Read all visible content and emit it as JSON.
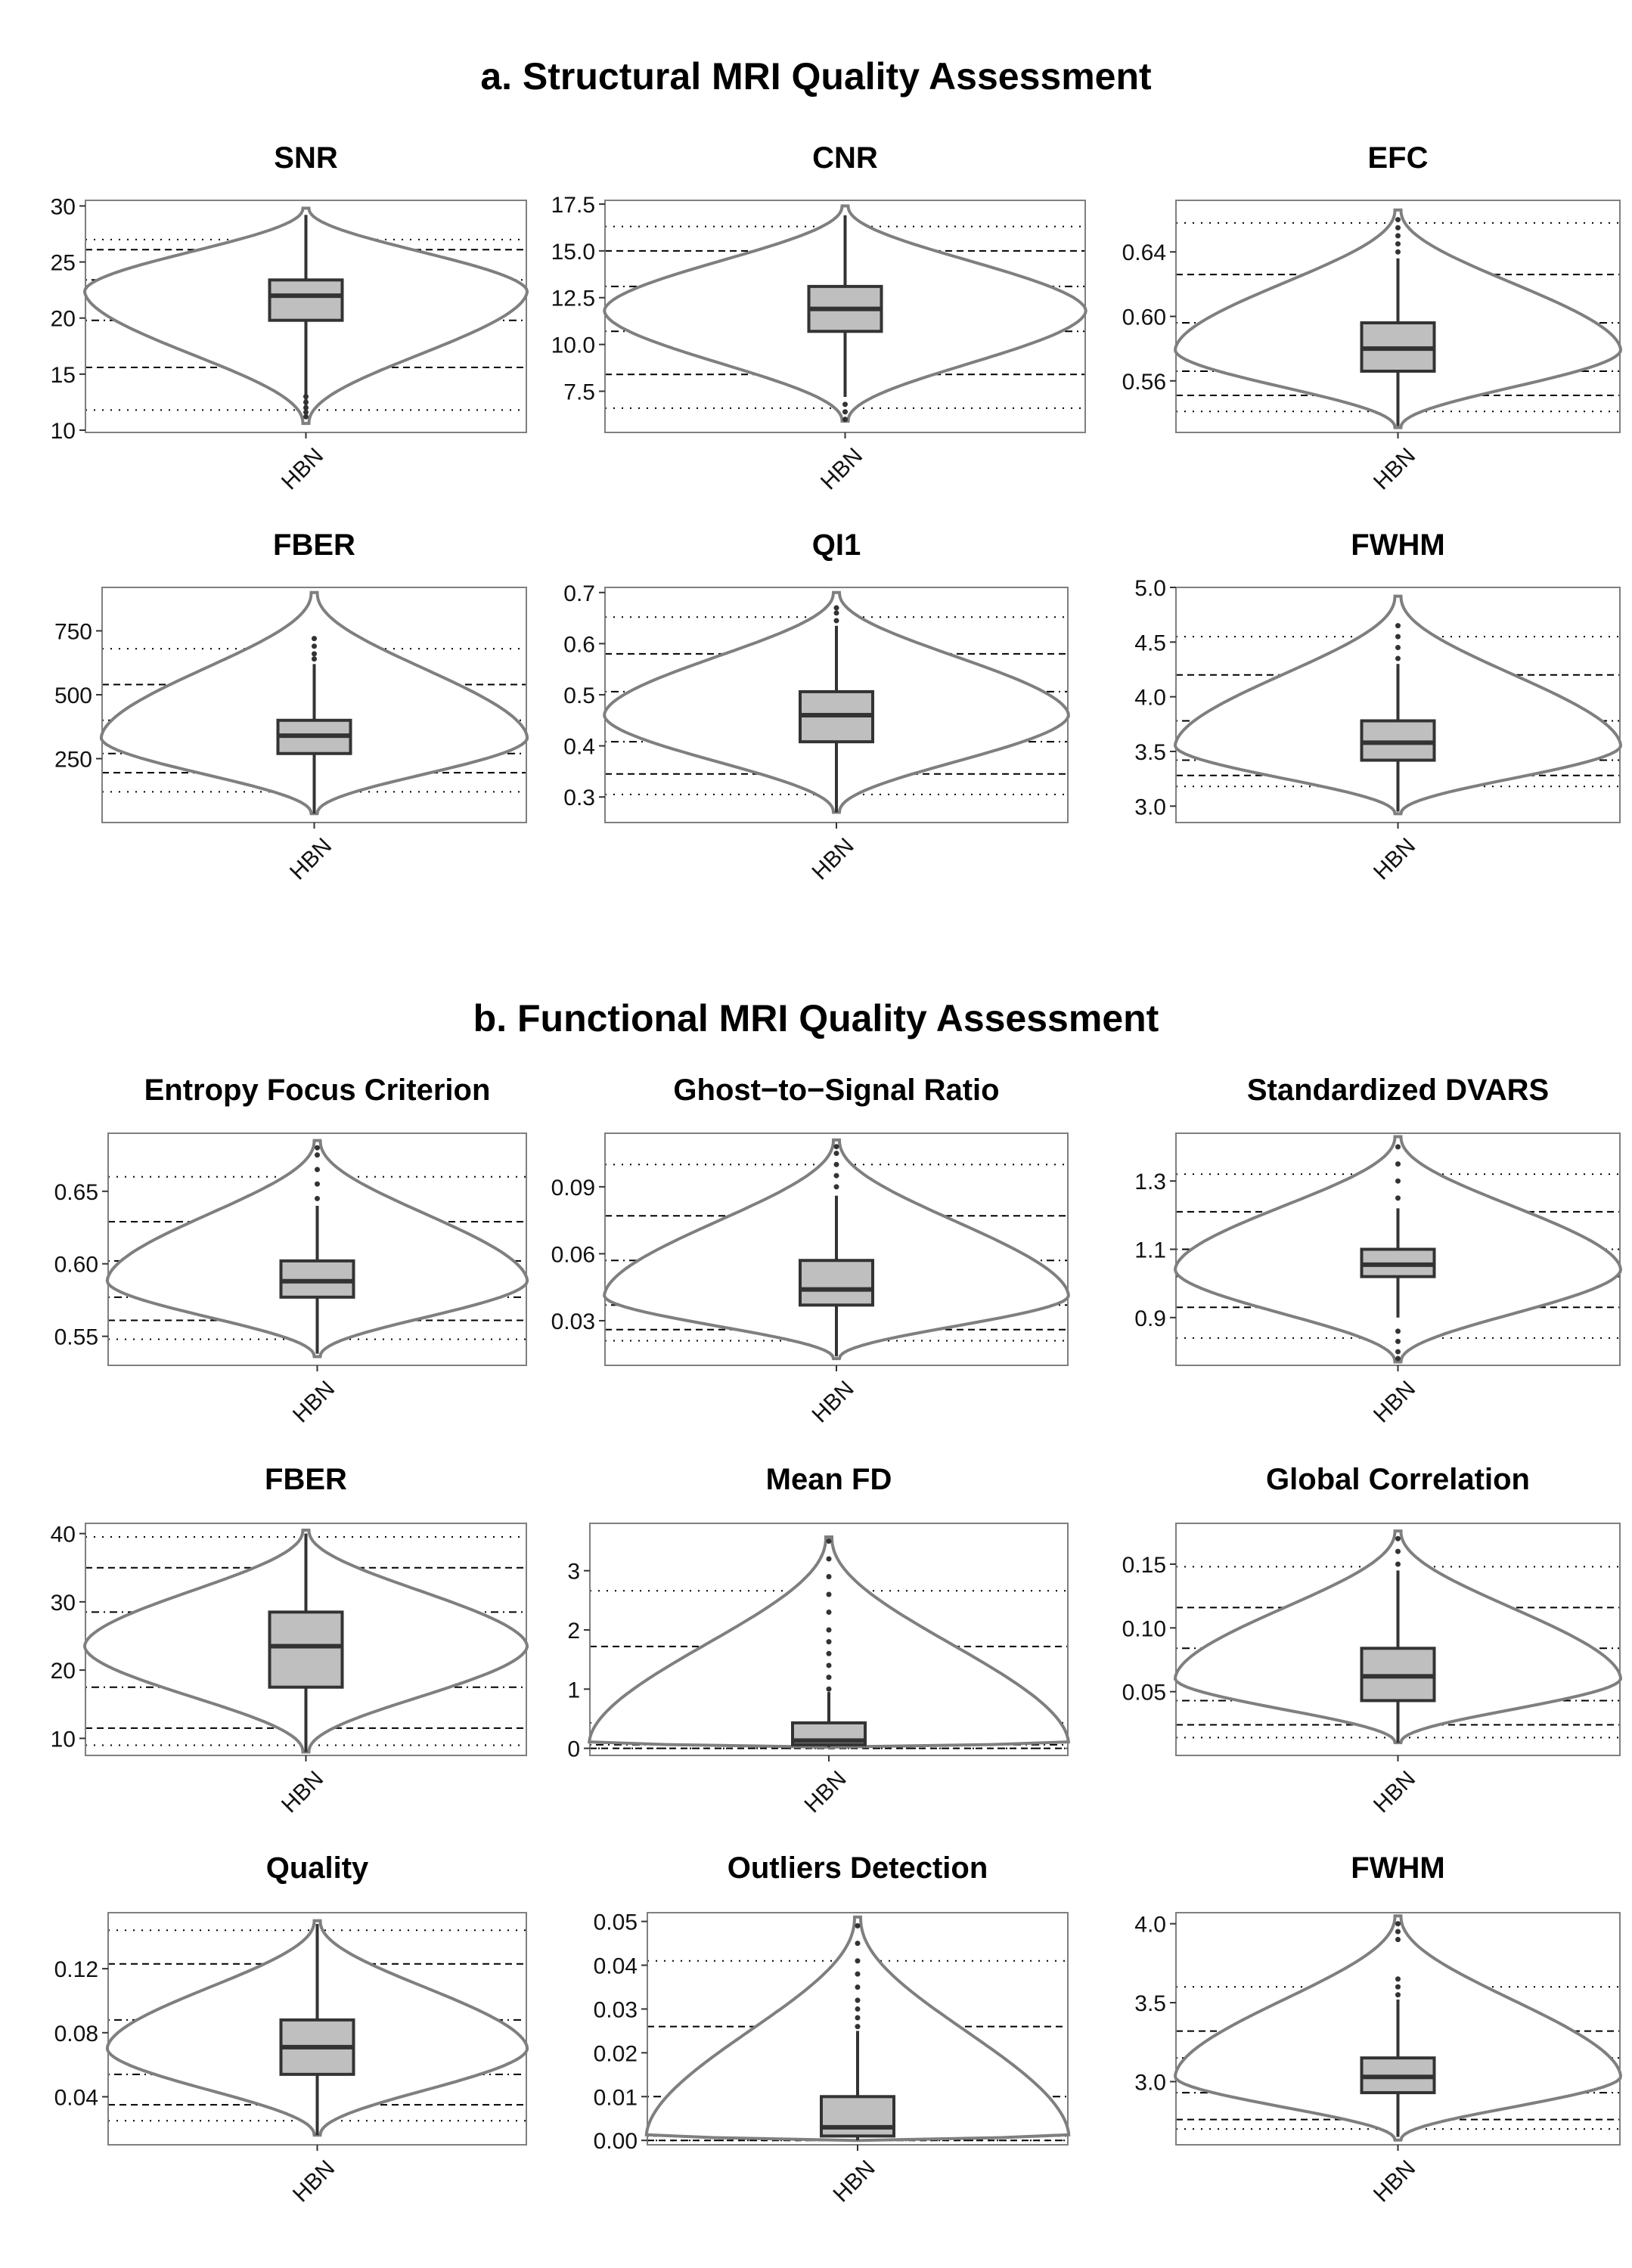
{
  "section_a_title": "a. Structural MRI Quality Assessment",
  "section_b_title": "b. Functional MRI Quality Assessment",
  "colors": {
    "box_fill": "#bfbfbf",
    "violin_stroke": "#7f7f7f",
    "frame": "#7f7f7f",
    "reference_line": "#000000",
    "median_line": "#333333"
  },
  "chart_data": [
    {
      "type": "violin",
      "section": "a",
      "title": "SNR",
      "categories": [
        "HBN"
      ],
      "yticks": [
        "10",
        "15",
        "20",
        "25",
        "30"
      ],
      "ylim": [
        9.8,
        30.5
      ],
      "box": {
        "min": 11.2,
        "q1": 19.8,
        "median": 22.0,
        "q3": 23.4,
        "max": 29.2
      },
      "violin_range": [
        10.6,
        29.8
      ],
      "violin_peak": 22.4,
      "outliers": [
        11.2,
        11.6,
        12.0,
        12.5,
        13.0
      ],
      "reference_lines": {
        "solid": 22.0,
        "dotdash": [
          19.8,
          23.4
        ],
        "dashed": [
          15.6,
          26.1
        ],
        "dotted": [
          11.8,
          27.0
        ]
      }
    },
    {
      "type": "violin",
      "section": "a",
      "title": "CNR",
      "categories": [
        "HBN"
      ],
      "yticks": [
        "7.5",
        "10.0",
        "12.5",
        "15.0",
        "17.5"
      ],
      "ylim": [
        5.3,
        17.7
      ],
      "box": {
        "min": 7.2,
        "q1": 10.7,
        "median": 11.9,
        "q3": 13.1,
        "max": 16.9
      },
      "violin_range": [
        5.9,
        17.4
      ],
      "violin_peak": 11.8,
      "outliers": [
        6.0,
        6.4,
        6.8
      ],
      "reference_lines": {
        "solid": 11.9,
        "dotdash": [
          10.7,
          13.1
        ],
        "dashed": [
          8.4,
          15.0
        ],
        "dotted": [
          6.6,
          16.3
        ]
      }
    },
    {
      "type": "violin",
      "section": "a",
      "title": "EFC",
      "categories": [
        "HBN"
      ],
      "yticks": [
        "0.56",
        "0.60",
        "0.64"
      ],
      "ylim": [
        0.528,
        0.672
      ],
      "box": {
        "min": 0.532,
        "q1": 0.566,
        "median": 0.58,
        "q3": 0.596,
        "max": 0.636
      },
      "violin_range": [
        0.531,
        0.666
      ],
      "violin_peak": 0.579,
      "outliers": [
        0.64,
        0.645,
        0.65,
        0.655,
        0.66
      ],
      "reference_lines": {
        "solid": 0.58,
        "dotdash": [
          0.566,
          0.596
        ],
        "dashed": [
          0.551,
          0.626
        ],
        "dotted": [
          0.541,
          0.658
        ]
      }
    },
    {
      "type": "violin",
      "section": "a",
      "title": "FBER",
      "categories": [
        "HBN"
      ],
      "yticks": [
        "250",
        "500",
        "750"
      ],
      "ylim": [
        0,
        920
      ],
      "box": {
        "min": 35,
        "q1": 270,
        "median": 340,
        "q3": 400,
        "max": 620
      },
      "violin_range": [
        35,
        900
      ],
      "violin_peak": 330,
      "outliers": [
        640,
        660,
        690,
        720
      ],
      "reference_lines": {
        "solid": 340,
        "dotdash": [
          270,
          400
        ],
        "dashed": [
          195,
          540
        ],
        "dotted": [
          120,
          680
        ]
      }
    },
    {
      "type": "violin",
      "section": "a",
      "title": "QI1",
      "categories": [
        "HBN"
      ],
      "yticks": [
        "0.3",
        "0.4",
        "0.5",
        "0.6",
        "0.7"
      ],
      "ylim": [
        0.25,
        0.71
      ],
      "box": {
        "min": 0.27,
        "q1": 0.408,
        "median": 0.46,
        "q3": 0.506,
        "max": 0.635
      },
      "violin_range": [
        0.27,
        0.7
      ],
      "violin_peak": 0.46,
      "outliers": [
        0.645,
        0.66,
        0.67
      ],
      "reference_lines": {
        "solid": 0.46,
        "dotdash": [
          0.408,
          0.506
        ],
        "dashed": [
          0.345,
          0.58
        ],
        "dotted": [
          0.305,
          0.652
        ]
      }
    },
    {
      "type": "violin",
      "section": "a",
      "title": "FWHM",
      "categories": [
        "HBN"
      ],
      "yticks": [
        "3.0",
        "3.5",
        "4.0",
        "4.5",
        "5.0"
      ],
      "ylim": [
        2.85,
        5.0
      ],
      "box": {
        "min": 2.95,
        "q1": 3.42,
        "median": 3.58,
        "q3": 3.78,
        "max": 4.3
      },
      "violin_range": [
        2.93,
        4.92
      ],
      "violin_peak": 3.55,
      "outliers": [
        4.35,
        4.45,
        4.55,
        4.65
      ],
      "reference_lines": {
        "solid": 3.58,
        "dotdash": [
          3.42,
          3.78
        ],
        "dashed": [
          3.28,
          4.2
        ],
        "dotted": [
          3.18,
          4.55
        ]
      }
    },
    {
      "type": "violin",
      "section": "b",
      "title": "Entropy Focus Criterion",
      "categories": [
        "HBN"
      ],
      "yticks": [
        "0.55",
        "0.60",
        "0.65"
      ],
      "ylim": [
        0.53,
        0.69
      ],
      "box": {
        "min": 0.538,
        "q1": 0.577,
        "median": 0.588,
        "q3": 0.602,
        "max": 0.64
      },
      "violin_range": [
        0.536,
        0.685
      ],
      "violin_peak": 0.588,
      "outliers": [
        0.645,
        0.655,
        0.665,
        0.675,
        0.68
      ],
      "reference_lines": {
        "solid": 0.588,
        "dotdash": [
          0.577,
          0.602
        ],
        "dashed": [
          0.561,
          0.629
        ],
        "dotted": [
          0.548,
          0.66
        ]
      }
    },
    {
      "type": "violin",
      "section": "b",
      "title": "Ghost−to−Signal Ratio",
      "categories": [
        "HBN"
      ],
      "yticks": [
        "0.03",
        "0.06",
        "0.09"
      ],
      "ylim": [
        0.01,
        0.114
      ],
      "box": {
        "min": 0.014,
        "q1": 0.037,
        "median": 0.044,
        "q3": 0.057,
        "max": 0.086
      },
      "violin_range": [
        0.013,
        0.111
      ],
      "violin_peak": 0.041,
      "outliers": [
        0.09,
        0.095,
        0.1,
        0.105,
        0.108
      ],
      "reference_lines": {
        "solid": 0.044,
        "dotdash": [
          0.037,
          0.057
        ],
        "dashed": [
          0.026,
          0.077
        ],
        "dotted": [
          0.021,
          0.1
        ]
      }
    },
    {
      "type": "violin",
      "section": "b",
      "title": "Standardized DVARS",
      "categories": [
        "HBN"
      ],
      "yticks": [
        "0.9",
        "1.1",
        "1.3"
      ],
      "ylim": [
        0.76,
        1.44
      ],
      "box": {
        "min": 0.9,
        "q1": 1.02,
        "median": 1.055,
        "q3": 1.1,
        "max": 1.22
      },
      "violin_range": [
        0.77,
        1.43
      ],
      "violin_peak": 1.04,
      "outliers": [
        0.78,
        0.8,
        0.83,
        0.86,
        1.25,
        1.3,
        1.35,
        1.4
      ],
      "reference_lines": {
        "solid": 1.055,
        "dotdash": [
          1.02,
          1.1
        ],
        "dashed": [
          0.93,
          1.21
        ],
        "dotted": [
          0.84,
          1.32
        ]
      }
    },
    {
      "type": "violin",
      "section": "b",
      "title": "FBER",
      "categories": [
        "HBN"
      ],
      "yticks": [
        "10",
        "20",
        "30",
        "40"
      ],
      "ylim": [
        7.5,
        41.5
      ],
      "box": {
        "min": 8.0,
        "q1": 17.5,
        "median": 23.5,
        "q3": 28.5,
        "max": 40.0
      },
      "violin_range": [
        8.0,
        40.5
      ],
      "violin_peak": 23.5,
      "outliers": [],
      "reference_lines": {
        "solid": 23.5,
        "dotdash": [
          17.5,
          28.5
        ],
        "dashed": [
          11.5,
          35.0
        ],
        "dotted": [
          9.0,
          39.5
        ]
      }
    },
    {
      "type": "violin",
      "section": "b",
      "title": "Mean FD",
      "categories": [
        "HBN"
      ],
      "yticks": [
        "0",
        "1",
        "2",
        "3"
      ],
      "ylim": [
        -0.12,
        3.8
      ],
      "box": {
        "min": 0.02,
        "q1": 0.06,
        "median": 0.13,
        "q3": 0.43,
        "max": 0.95
      },
      "violin_range": [
        0.02,
        3.57
      ],
      "violin_peak": 0.09,
      "outliers": [
        1.0,
        1.2,
        1.4,
        1.6,
        1.8,
        2.0,
        2.3,
        2.6,
        2.9,
        3.2,
        3.5
      ],
      "reference_lines": {
        "solid": 0.13,
        "dotdash": [
          0.06,
          0.43
        ],
        "dashed": [
          0.0,
          1.72
        ],
        "dotted": [
          0.0,
          2.66
        ]
      }
    },
    {
      "type": "violin",
      "section": "b",
      "title": "Global Correlation",
      "categories": [
        "HBN"
      ],
      "yticks": [
        "0.05",
        "0.10",
        "0.15"
      ],
      "ylim": [
        0.0,
        0.182
      ],
      "box": {
        "min": 0.01,
        "q1": 0.043,
        "median": 0.062,
        "q3": 0.084,
        "max": 0.145
      },
      "violin_range": [
        0.01,
        0.176
      ],
      "violin_peak": 0.06,
      "outliers": [
        0.15,
        0.16,
        0.17
      ],
      "reference_lines": {
        "solid": 0.062,
        "dotdash": [
          0.043,
          0.084
        ],
        "dashed": [
          0.024,
          0.116
        ],
        "dotted": [
          0.014,
          0.148
        ]
      }
    },
    {
      "type": "violin",
      "section": "b",
      "title": "Quality",
      "categories": [
        "HBN"
      ],
      "yticks": [
        "0.04",
        "0.08",
        "0.12"
      ],
      "ylim": [
        0.01,
        0.155
      ],
      "box": {
        "min": 0.016,
        "q1": 0.054,
        "median": 0.071,
        "q3": 0.088,
        "max": 0.148
      },
      "violin_range": [
        0.016,
        0.15
      ],
      "violin_peak": 0.07,
      "outliers": [],
      "reference_lines": {
        "solid": 0.071,
        "dotdash": [
          0.054,
          0.088
        ],
        "dashed": [
          0.035,
          0.123
        ],
        "dotted": [
          0.025,
          0.144
        ]
      }
    },
    {
      "type": "violin",
      "section": "b",
      "title": "Outliers Detection",
      "categories": [
        "HBN"
      ],
      "yticks": [
        "0.00",
        "0.01",
        "0.02",
        "0.03",
        "0.04",
        "0.05"
      ],
      "ylim": [
        -0.001,
        0.052
      ],
      "box": {
        "min": 0.0,
        "q1": 0.001,
        "median": 0.003,
        "q3": 0.01,
        "max": 0.025
      },
      "violin_range": [
        0.0,
        0.051
      ],
      "violin_peak": 0.001,
      "outliers": [
        0.026,
        0.028,
        0.03,
        0.032,
        0.035,
        0.038,
        0.041,
        0.045,
        0.049
      ],
      "reference_lines": {
        "solid": 0.003,
        "dotdash": [
          0.001,
          0.01
        ],
        "dashed": [
          0.0,
          0.026
        ],
        "dotted": [
          0.0,
          0.041
        ]
      }
    },
    {
      "type": "violin",
      "section": "b",
      "title": "FWHM",
      "categories": [
        "HBN"
      ],
      "yticks": [
        "3.0",
        "3.5",
        "4.0"
      ],
      "ylim": [
        2.6,
        4.07
      ],
      "box": {
        "min": 2.65,
        "q1": 2.93,
        "median": 3.03,
        "q3": 3.15,
        "max": 3.52
      },
      "violin_range": [
        2.63,
        4.05
      ],
      "violin_peak": 3.03,
      "outliers": [
        3.55,
        3.6,
        3.65,
        3.9,
        3.95,
        4.0
      ],
      "reference_lines": {
        "solid": 3.03,
        "dotdash": [
          2.93,
          3.15
        ],
        "dashed": [
          2.76,
          3.32
        ],
        "dotted": [
          2.7,
          3.6
        ]
      }
    }
  ]
}
